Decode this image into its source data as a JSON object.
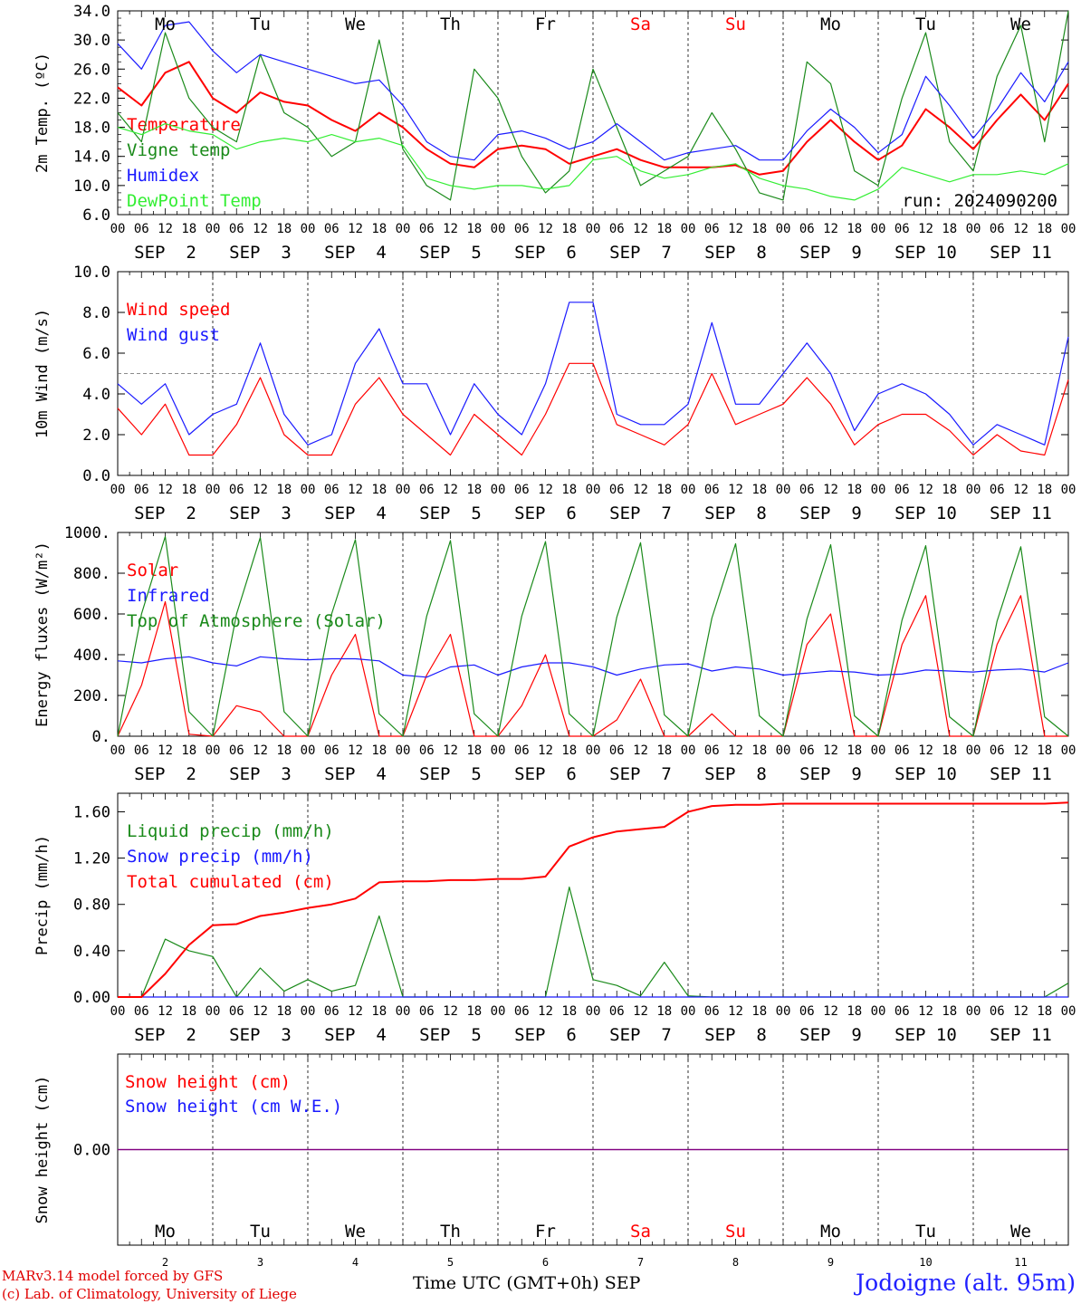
{
  "colors": {
    "red": "#ff0000",
    "darkgreen": "#1a8a1a",
    "blue": "#1a1aff",
    "lightgreen": "#33ee33",
    "purple": "#800080",
    "weekend": "#ff0000"
  },
  "hour_ticks": [
    "00",
    "06",
    "12",
    "18"
  ],
  "hour_tick_end": "00",
  "date_labels": [
    "SEP  2",
    "SEP  3",
    "SEP  4",
    "SEP  5",
    "SEP  6",
    "SEP  7",
    "SEP  8",
    "SEP  9",
    "SEP 10",
    "SEP 11"
  ],
  "day_names": [
    "Mo",
    "Tu",
    "We",
    "Th",
    "Fr",
    "Sa",
    "Su",
    "Mo",
    "Tu",
    "We"
  ],
  "weekend_flags": [
    false,
    false,
    false,
    false,
    false,
    true,
    true,
    false,
    false,
    false
  ],
  "day_numbers": [
    "2",
    "3",
    "4",
    "5",
    "6",
    "7",
    "8",
    "9",
    "10",
    "11"
  ],
  "footer": {
    "line1": "MARv3.14 model forced by GFS",
    "line2": "(c) Lab. of Climatology, University of Liege",
    "axis_title": "Time UTC (GMT+0h) SEP",
    "station": "Jodoigne (alt. 95m)"
  },
  "chart_data": [
    {
      "type": "line",
      "id": "temp",
      "ylabel": "2m Temp. (ºC)",
      "ylim": [
        6.0,
        34.0
      ],
      "yticks": [
        "6.0",
        "10.0",
        "14.0",
        "18.0",
        "22.0",
        "26.0",
        "30.0",
        "34.0"
      ],
      "ytick_values": [
        6,
        10,
        14,
        18,
        22,
        26,
        30,
        34
      ],
      "annotation": "run: 2024090200",
      "x": [
        0,
        6,
        12,
        18,
        24,
        30,
        36,
        42,
        48,
        54,
        60,
        66,
        72,
        78,
        84,
        90,
        96,
        102,
        108,
        114,
        120,
        126,
        132,
        138,
        144,
        150,
        156,
        162,
        168,
        174,
        180,
        186,
        192,
        198,
        204,
        210,
        216,
        222,
        228,
        234,
        240
      ],
      "series": [
        {
          "name": "Temperature",
          "color": "red",
          "values": [
            23.5,
            21.0,
            25.5,
            27.0,
            22.0,
            20.0,
            22.8,
            21.5,
            21.0,
            19.0,
            17.5,
            20.0,
            18.0,
            15.0,
            13.0,
            12.5,
            15.0,
            15.5,
            15.0,
            13.0,
            14.0,
            15.0,
            13.5,
            12.5,
            12.5,
            12.5,
            12.8,
            11.5,
            12.0,
            16.0,
            19.0,
            16.0,
            13.5,
            15.5,
            20.5,
            18.0,
            15.0,
            19.0,
            22.5,
            19.0,
            24.0
          ]
        },
        {
          "name": "Vigne temp",
          "color": "darkgreen",
          "values": [
            20.0,
            16.0,
            31.0,
            22.0,
            18.0,
            16.0,
            28.0,
            20.0,
            18.0,
            14.0,
            16.0,
            30.0,
            15.0,
            10.0,
            8.0,
            26.0,
            22.0,
            14.0,
            9.0,
            12.0,
            26.0,
            18.0,
            10.0,
            12.0,
            14.0,
            20.0,
            15.0,
            9.0,
            8.0,
            27.0,
            24.0,
            12.0,
            10.0,
            22.0,
            31.0,
            16.0,
            12.0,
            25.0,
            32.0,
            16.0,
            34.0
          ]
        },
        {
          "name": "Humidex",
          "color": "blue",
          "values": [
            29.5,
            26.0,
            32.0,
            32.5,
            28.5,
            25.5,
            28.0,
            27.0,
            26.0,
            25.0,
            24.0,
            24.5,
            21.0,
            16.0,
            14.0,
            13.5,
            17.0,
            17.5,
            16.5,
            15.0,
            16.0,
            18.5,
            16.0,
            13.5,
            14.5,
            15.0,
            15.5,
            13.5,
            13.5,
            17.5,
            20.5,
            18.0,
            14.5,
            17.0,
            25.0,
            21.0,
            16.5,
            20.5,
            25.5,
            21.5,
            27.0
          ]
        },
        {
          "name": "DewPoint Temp",
          "color": "lightgreen",
          "values": [
            18.0,
            17.0,
            18.5,
            17.5,
            17.0,
            15.0,
            16.0,
            16.5,
            16.0,
            17.0,
            16.0,
            16.5,
            15.5,
            11.0,
            10.0,
            9.5,
            10.0,
            10.0,
            9.5,
            10.0,
            13.5,
            14.0,
            12.0,
            11.0,
            11.5,
            12.5,
            13.0,
            11.0,
            10.0,
            9.5,
            8.5,
            8.0,
            9.5,
            12.5,
            11.5,
            10.5,
            11.5,
            11.5,
            12.0,
            11.5,
            13.0
          ]
        }
      ]
    },
    {
      "type": "line",
      "id": "wind",
      "ylabel": "10m Wind (m/s)",
      "ylim": [
        0.0,
        10.0
      ],
      "yticks": [
        "0.0",
        "2.0",
        "4.0",
        "6.0",
        "8.0",
        "10.0"
      ],
      "ytick_values": [
        0,
        2,
        4,
        6,
        8,
        10
      ],
      "reference_line": 5.0,
      "x": [
        0,
        6,
        12,
        18,
        24,
        30,
        36,
        42,
        48,
        54,
        60,
        66,
        72,
        78,
        84,
        90,
        96,
        102,
        108,
        114,
        120,
        126,
        132,
        138,
        144,
        150,
        156,
        162,
        168,
        174,
        180,
        186,
        192,
        198,
        204,
        210,
        216,
        222,
        228,
        234,
        240
      ],
      "series": [
        {
          "name": "Wind speed",
          "color": "red",
          "values": [
            3.3,
            2.0,
            3.5,
            1.0,
            1.0,
            2.5,
            4.8,
            2.0,
            1.0,
            1.0,
            3.5,
            4.8,
            3.0,
            2.0,
            1.0,
            3.0,
            2.0,
            1.0,
            3.0,
            5.5,
            5.5,
            2.5,
            2.0,
            1.5,
            2.5,
            5.0,
            2.5,
            3.0,
            3.5,
            4.8,
            3.5,
            1.5,
            2.5,
            3.0,
            3.0,
            2.2,
            1.0,
            2.0,
            1.2,
            1.0,
            4.7
          ]
        },
        {
          "name": "Wind gust",
          "color": "blue",
          "values": [
            4.5,
            3.5,
            4.5,
            2.0,
            3.0,
            3.5,
            6.5,
            3.0,
            1.5,
            2.0,
            5.5,
            7.2,
            4.5,
            4.5,
            2.0,
            4.5,
            3.0,
            2.0,
            4.5,
            8.5,
            8.5,
            3.0,
            2.5,
            2.5,
            3.5,
            7.5,
            3.5,
            3.5,
            5.0,
            6.5,
            5.0,
            2.2,
            4.0,
            4.5,
            4.0,
            3.0,
            1.5,
            2.5,
            2.0,
            1.5,
            6.8
          ]
        }
      ]
    },
    {
      "type": "line",
      "id": "energy",
      "ylabel": "Energy fluxes (W/m²)",
      "ylim": [
        0,
        1000
      ],
      "yticks": [
        "0.",
        "200.",
        "400.",
        "600.",
        "800.",
        "1000."
      ],
      "ytick_values": [
        0,
        200,
        400,
        600,
        800,
        1000
      ],
      "x": [
        0,
        6,
        12,
        18,
        24,
        30,
        36,
        42,
        48,
        54,
        60,
        66,
        72,
        78,
        84,
        90,
        96,
        102,
        108,
        114,
        120,
        126,
        132,
        138,
        144,
        150,
        156,
        162,
        168,
        174,
        180,
        186,
        192,
        198,
        204,
        210,
        216,
        222,
        228,
        234,
        240
      ],
      "series": [
        {
          "name": "Solar",
          "color": "red",
          "values": [
            0,
            250,
            660,
            10,
            0,
            150,
            120,
            0,
            0,
            300,
            500,
            0,
            0,
            300,
            500,
            0,
            0,
            150,
            400,
            0,
            0,
            80,
            280,
            0,
            0,
            110,
            0,
            0,
            0,
            450,
            600,
            0,
            0,
            450,
            690,
            0,
            0,
            450,
            690,
            0,
            0
          ]
        },
        {
          "name": "Infrared",
          "color": "blue",
          "values": [
            370,
            360,
            380,
            390,
            360,
            345,
            390,
            380,
            375,
            380,
            380,
            370,
            300,
            290,
            340,
            350,
            300,
            340,
            360,
            360,
            340,
            300,
            330,
            350,
            355,
            320,
            340,
            330,
            300,
            310,
            320,
            315,
            300,
            305,
            325,
            320,
            315,
            325,
            330,
            315,
            360
          ]
        },
        {
          "name": "Top of Atmosphere (Solar)",
          "color": "darkgreen",
          "values": [
            0,
            600,
            980,
            120,
            0,
            600,
            975,
            120,
            0,
            600,
            965,
            110,
            0,
            590,
            960,
            110,
            0,
            590,
            955,
            110,
            0,
            585,
            950,
            105,
            0,
            580,
            945,
            100,
            0,
            575,
            940,
            100,
            0,
            570,
            935,
            95,
            0,
            565,
            930,
            95,
            0
          ]
        }
      ]
    },
    {
      "type": "line",
      "id": "precip",
      "ylabel": "Precip (mm/h)",
      "ylim": [
        0.0,
        1.76
      ],
      "yticks": [
        "0.00",
        "0.40",
        "0.80",
        "1.20",
        "1.60"
      ],
      "ytick_values": [
        0,
        0.4,
        0.8,
        1.2,
        1.6
      ],
      "x": [
        0,
        6,
        12,
        18,
        24,
        30,
        36,
        42,
        48,
        54,
        60,
        66,
        72,
        78,
        84,
        90,
        96,
        102,
        108,
        114,
        120,
        126,
        132,
        138,
        144,
        150,
        156,
        162,
        168,
        174,
        180,
        186,
        192,
        198,
        204,
        210,
        216,
        222,
        228,
        234,
        240
      ],
      "series": [
        {
          "name": "Liquid precip (mm/h)",
          "color": "darkgreen",
          "values": [
            0,
            0,
            0.5,
            0.4,
            0.35,
            0,
            0.25,
            0.05,
            0.15,
            0.05,
            0.1,
            0.7,
            0,
            0,
            0,
            0,
            0,
            0,
            0,
            0.95,
            0.15,
            0.1,
            0.01,
            0.3,
            0.01,
            0,
            0,
            0,
            0,
            0,
            0,
            0,
            0,
            0,
            0,
            0,
            0,
            0,
            0,
            0,
            0.12
          ]
        },
        {
          "name": "Snow precip (mm/h)",
          "color": "blue",
          "values": [
            0,
            0,
            0,
            0,
            0,
            0,
            0,
            0,
            0,
            0,
            0,
            0,
            0,
            0,
            0,
            0,
            0,
            0,
            0,
            0,
            0,
            0,
            0,
            0,
            0,
            0,
            0,
            0,
            0,
            0,
            0,
            0,
            0,
            0,
            0,
            0,
            0,
            0,
            0,
            0,
            0
          ]
        },
        {
          "name": "Total cumulated (cm)",
          "color": "red",
          "values": [
            0,
            0,
            0.2,
            0.45,
            0.62,
            0.63,
            0.7,
            0.73,
            0.77,
            0.8,
            0.85,
            0.99,
            1.0,
            1.0,
            1.01,
            1.01,
            1.02,
            1.02,
            1.04,
            1.3,
            1.38,
            1.43,
            1.45,
            1.47,
            1.6,
            1.65,
            1.66,
            1.66,
            1.67,
            1.67,
            1.67,
            1.67,
            1.67,
            1.67,
            1.67,
            1.67,
            1.67,
            1.67,
            1.67,
            1.67,
            1.68
          ]
        }
      ]
    },
    {
      "type": "line",
      "id": "snow",
      "ylabel": "Snow height (cm)",
      "ylim": [
        -1.0,
        1.0
      ],
      "yticks": [
        "0.00"
      ],
      "ytick_values": [
        0
      ],
      "x": [
        0,
        240
      ],
      "series": [
        {
          "name": "Snow height (cm)",
          "color": "red",
          "values": [
            0,
            0
          ]
        },
        {
          "name": "Snow height (cm W.E.)",
          "color": "blue",
          "values": [
            0,
            0
          ]
        }
      ]
    }
  ]
}
